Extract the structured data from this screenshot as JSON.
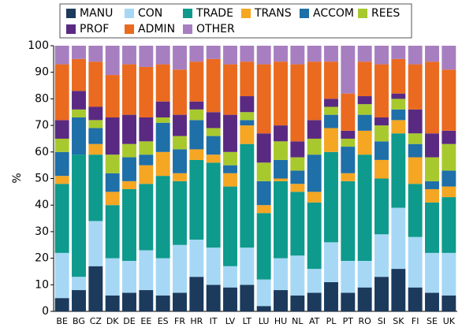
{
  "chart_data": {
    "type": "stacked_bar",
    "y_label": "%",
    "categories": [
      "BE",
      "BG",
      "CZ",
      "DK",
      "DE",
      "EE",
      "ES",
      "FR",
      "HR",
      "IT",
      "LV",
      "LT",
      "LU",
      "HU",
      "NL",
      "AT",
      "PL",
      "PT",
      "RO",
      "SI",
      "SK",
      "FI",
      "SE",
      "UK"
    ],
    "series": [
      {
        "name": "MANU",
        "color": "#1b3a5c",
        "values": [
          5,
          8,
          17,
          6,
          7,
          8,
          6,
          7,
          13,
          10,
          9,
          10,
          2,
          8,
          6,
          7,
          11,
          7,
          9,
          13,
          16,
          9,
          7,
          6
        ]
      },
      {
        "name": "CON",
        "color": "#a6d8f5",
        "values": [
          17,
          5,
          17,
          14,
          12,
          15,
          14,
          18,
          14,
          14,
          8,
          14,
          10,
          12,
          15,
          9,
          15,
          12,
          10,
          16,
          23,
          19,
          15,
          16
        ]
      },
      {
        "name": "TRADE",
        "color": "#0e9a8c",
        "values": [
          26,
          46,
          25,
          20,
          27,
          25,
          31,
          24,
          30,
          32,
          30,
          39,
          25,
          29,
          24,
          25,
          34,
          30,
          40,
          21,
          28,
          20,
          19,
          21
        ]
      },
      {
        "name": "TRANS",
        "color": "#f5a623",
        "values": [
          3,
          0,
          4,
          5,
          3,
          7,
          9,
          3,
          4,
          3,
          5,
          7,
          3,
          1,
          3,
          4,
          9,
          3,
          9,
          7,
          5,
          10,
          5,
          4
        ]
      },
      {
        "name": "ACCOM",
        "color": "#1f6fa8",
        "values": [
          9,
          14,
          6,
          7,
          9,
          4,
          11,
          9,
          11,
          7,
          3,
          2,
          9,
          7,
          5,
          14,
          5,
          10,
          6,
          7,
          4,
          5,
          3,
          6
        ]
      },
      {
        "name": "REES",
        "color": "#a8c92e",
        "values": [
          5,
          3,
          3,
          7,
          5,
          5,
          2,
          5,
          4,
          3,
          5,
          3,
          7,
          7,
          5,
          6,
          3,
          3,
          4,
          6,
          4,
          4,
          9,
          10
        ]
      },
      {
        "name": "PROF",
        "color": "#5a2a82",
        "values": [
          7,
          7,
          5,
          14,
          11,
          9,
          6,
          8,
          3,
          6,
          14,
          6,
          11,
          6,
          6,
          7,
          3,
          3,
          3,
          3,
          2,
          9,
          9,
          5
        ]
      },
      {
        "name": "ADMIN",
        "color": "#ea6a1f",
        "values": [
          21,
          12,
          17,
          16,
          19,
          19,
          14,
          17,
          15,
          20,
          19,
          13,
          26,
          24,
          29,
          22,
          14,
          14,
          13,
          20,
          13,
          17,
          27,
          23
        ]
      },
      {
        "name": "OTHER",
        "color": "#a77fc0",
        "values": [
          7,
          5,
          6,
          11,
          7,
          8,
          7,
          9,
          6,
          5,
          7,
          6,
          7,
          6,
          7,
          6,
          6,
          18,
          6,
          7,
          5,
          7,
          6,
          9
        ]
      }
    ],
    "ylim": [
      0,
      100
    ],
    "yticks": [
      0,
      10,
      20,
      30,
      40,
      50,
      60,
      70,
      80,
      90,
      100
    ],
    "grid": false,
    "legend": "top"
  }
}
